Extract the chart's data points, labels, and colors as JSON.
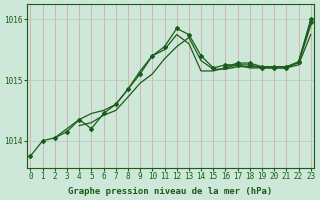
{
  "bg_color": "#cde8d8",
  "line_color": "#1a5c1a",
  "grid_color_v": "#d4a0a0",
  "grid_color_h": "#b8c8b8",
  "xlabel": "Graphe pression niveau de la mer (hPa)",
  "xlabel_fontsize": 6.5,
  "tick_fontsize": 5.5,
  "yticks": [
    1014,
    1015,
    1016
  ],
  "ylim": [
    1013.55,
    1016.25
  ],
  "xlim": [
    -0.3,
    23.3
  ],
  "xticks": [
    0,
    1,
    2,
    3,
    4,
    5,
    6,
    7,
    8,
    9,
    10,
    11,
    12,
    13,
    14,
    15,
    16,
    17,
    18,
    19,
    20,
    21,
    22,
    23
  ],
  "series": [
    {
      "x": [
        0,
        1,
        2,
        3,
        4,
        5,
        6,
        7,
        8,
        9,
        10,
        11,
        12,
        13,
        14,
        15,
        16,
        17,
        18,
        19,
        20,
        21,
        22,
        23
      ],
      "y": [
        1013.75,
        1014.0,
        1014.05,
        1014.15,
        1014.35,
        1014.2,
        1014.45,
        1014.6,
        1014.85,
        1015.1,
        1015.4,
        1015.55,
        1015.85,
        1015.75,
        1015.4,
        1015.2,
        1015.25,
        1015.25,
        1015.25,
        1015.2,
        1015.2,
        1015.2,
        1015.3,
        1015.95
      ],
      "has_marker": true
    },
    {
      "x": [
        2,
        3,
        4,
        5,
        6,
        7,
        8,
        9,
        10,
        11,
        12,
        13,
        14,
        15,
        16,
        17,
        18,
        19,
        20,
        21,
        22,
        23
      ],
      "y": [
        1014.05,
        1014.2,
        1014.35,
        1014.45,
        1014.5,
        1014.6,
        1014.85,
        1015.15,
        1015.4,
        1015.5,
        1015.75,
        1015.6,
        1015.15,
        1015.15,
        1015.2,
        1015.25,
        1015.2,
        1015.2,
        1015.2,
        1015.2,
        1015.25,
        1015.75
      ],
      "has_marker": false
    },
    {
      "x": [
        4,
        5,
        6,
        7,
        8,
        9,
        10,
        11,
        12,
        13,
        14,
        15,
        16,
        17,
        18,
        19,
        20,
        21,
        22,
        23
      ],
      "y": [
        1014.25,
        1014.3,
        1014.42,
        1014.5,
        1014.72,
        1014.95,
        1015.1,
        1015.35,
        1015.55,
        1015.7,
        1015.32,
        1015.18,
        1015.18,
        1015.22,
        1015.22,
        1015.22,
        1015.22,
        1015.22,
        1015.28,
        1015.9
      ],
      "has_marker": false
    },
    {
      "x": [
        16,
        17,
        18,
        19,
        20,
        21,
        22,
        23
      ],
      "y": [
        1015.22,
        1015.28,
        1015.28,
        1015.22,
        1015.22,
        1015.22,
        1015.3,
        1016.0
      ],
      "has_marker": true
    }
  ],
  "marker": "D",
  "markersize": 2.0,
  "linewidth": 0.9
}
